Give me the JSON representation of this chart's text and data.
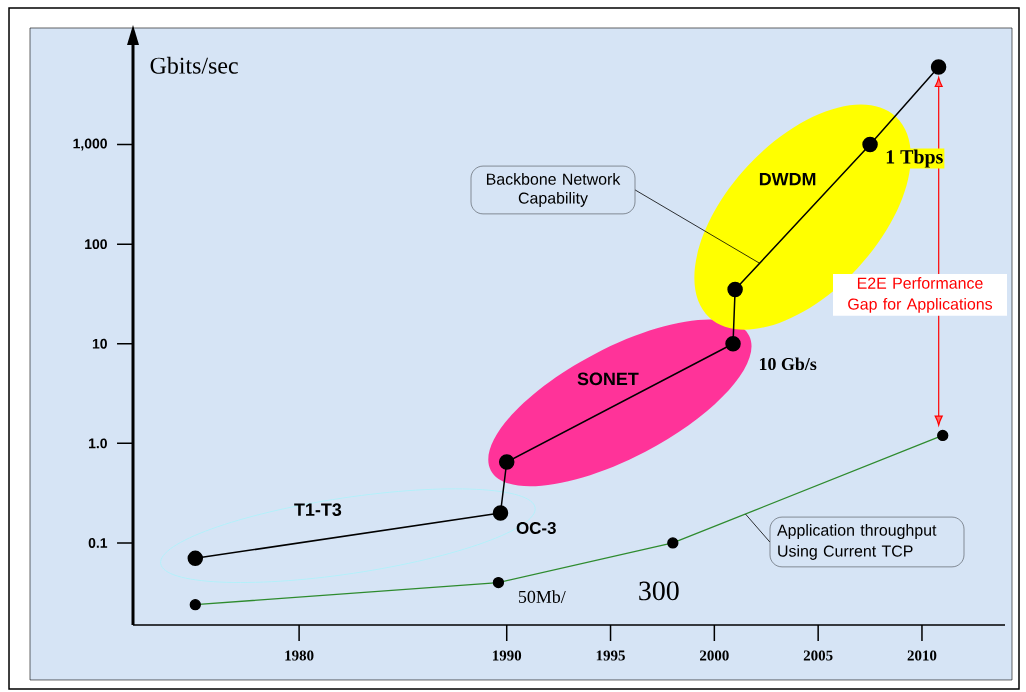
{
  "chart_data": {
    "type": "line",
    "ylabel": "Gbits/sec",
    "log": "y",
    "marker": "circle",
    "xlim": [
      1972,
      2014
    ],
    "xticks": [
      1980,
      1990,
      1995,
      2000,
      2005,
      2010
    ],
    "ylim": [
      0.015,
      10000
    ],
    "yticks": [
      {
        "value": 1000,
        "label": "1,000"
      },
      100,
      10,
      {
        "value": 1,
        "label": "1.0"
      },
      0.1
    ],
    "series": [
      {
        "color": "#000000",
        "x": [
          1975,
          1989.7,
          1990.0,
          2000.9,
          2001,
          2007.5,
          2010.8
        ],
        "values": [
          0.07,
          0.2,
          0.65,
          10,
          35,
          1000,
          6000
        ]
      },
      {
        "color": "#2e8b2e",
        "x": [
          1975,
          1989.6,
          1998,
          2011
        ],
        "values": [
          0.024,
          0.04,
          0.1,
          1.2
        ]
      }
    ],
    "annotations": [
      "1 Tbps",
      "10 Gb/s",
      "OC-3",
      "50Mb/",
      "300",
      "T1-T3",
      "SONET",
      "DWDM",
      {
        "text": "Backbone Network Capability",
        "x": 2002.2,
        "y": 64
      },
      "E2E Performance Gap for Applications",
      {
        "text": "Application throughput Using Current TCP",
        "x": 2001.5,
        "y": 0.195
      }
    ]
  }
}
